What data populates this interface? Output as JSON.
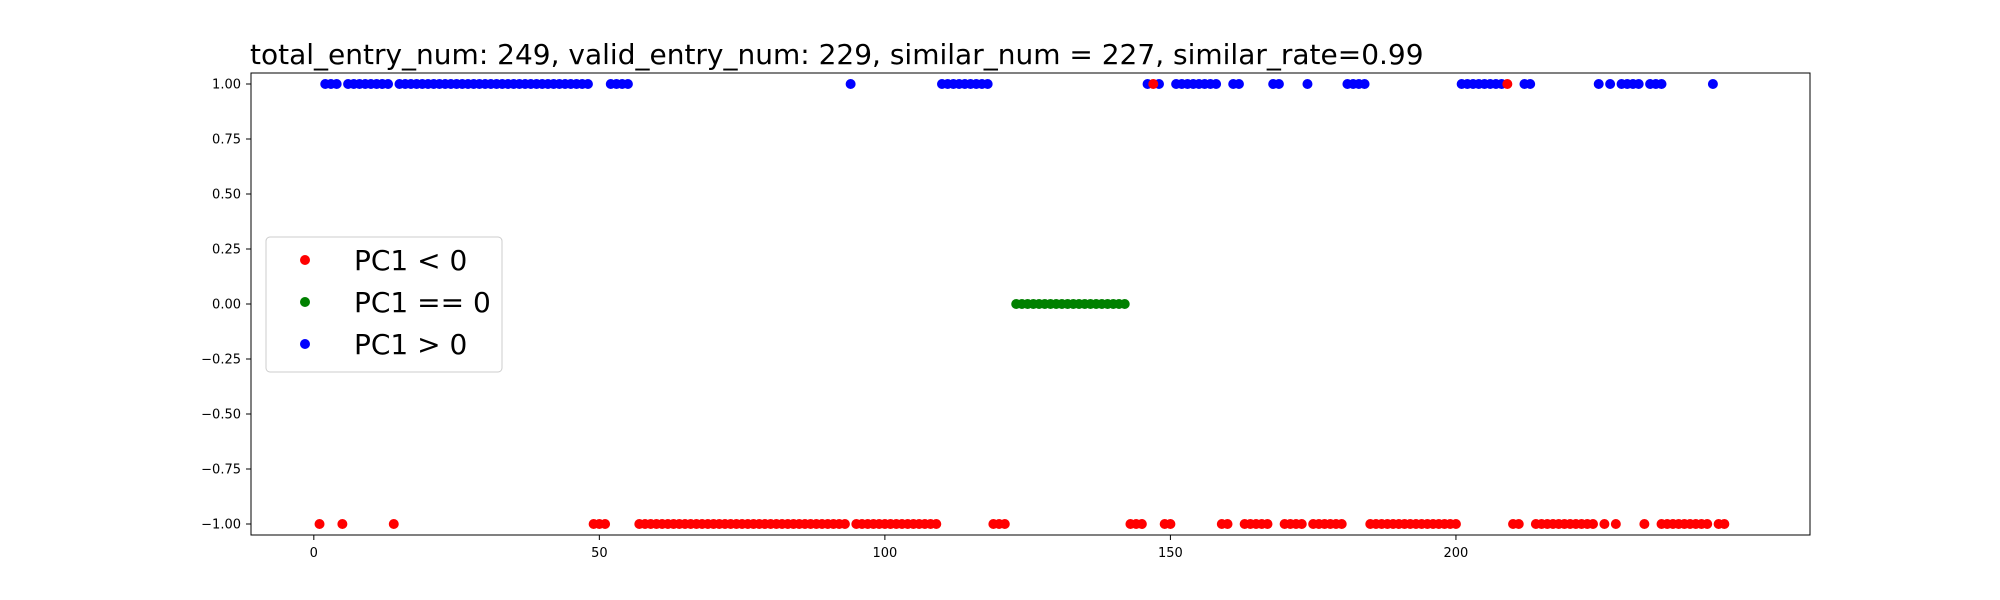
{
  "chart_data": {
    "type": "scatter",
    "title": "total_entry_num: 249, valid_entry_num: 229, similar_num = 227, similar_rate=0.99",
    "xlabel": "",
    "ylabel": "",
    "xlim": [
      -11,
      262
    ],
    "ylim": [
      -1.05,
      1.05
    ],
    "x_ticks": [
      0,
      50,
      100,
      150,
      200
    ],
    "x_tick_labels": [
      "0",
      "50",
      "100",
      "150",
      "200"
    ],
    "y_ticks": [
      1.0,
      0.75,
      0.5,
      0.25,
      0.0,
      -0.25,
      -0.5,
      -0.75,
      -1.0
    ],
    "y_tick_labels": [
      "1.00",
      "0.75",
      "0.50",
      "0.25",
      "0.00",
      "−0.25",
      "−0.50",
      "−0.75",
      "−1.00"
    ],
    "legend_location": "center-left",
    "series": [
      {
        "name": "PC1 < 0",
        "color": "#ff0000",
        "points": [
          [
            1,
            -1
          ],
          [
            5,
            -1
          ],
          [
            14,
            -1
          ],
          [
            49,
            -1
          ],
          [
            50,
            -1
          ],
          [
            51,
            -1
          ],
          [
            57,
            -1
          ],
          [
            58,
            -1
          ],
          [
            59,
            -1
          ],
          [
            60,
            -1
          ],
          [
            61,
            -1
          ],
          [
            62,
            -1
          ],
          [
            63,
            -1
          ],
          [
            64,
            -1
          ],
          [
            65,
            -1
          ],
          [
            66,
            -1
          ],
          [
            67,
            -1
          ],
          [
            68,
            -1
          ],
          [
            69,
            -1
          ],
          [
            70,
            -1
          ],
          [
            71,
            -1
          ],
          [
            72,
            -1
          ],
          [
            73,
            -1
          ],
          [
            74,
            -1
          ],
          [
            75,
            -1
          ],
          [
            76,
            -1
          ],
          [
            77,
            -1
          ],
          [
            78,
            -1
          ],
          [
            79,
            -1
          ],
          [
            80,
            -1
          ],
          [
            81,
            -1
          ],
          [
            82,
            -1
          ],
          [
            83,
            -1
          ],
          [
            84,
            -1
          ],
          [
            85,
            -1
          ],
          [
            86,
            -1
          ],
          [
            87,
            -1
          ],
          [
            88,
            -1
          ],
          [
            89,
            -1
          ],
          [
            90,
            -1
          ],
          [
            91,
            -1
          ],
          [
            92,
            -1
          ],
          [
            93,
            -1
          ],
          [
            95,
            -1
          ],
          [
            96,
            -1
          ],
          [
            97,
            -1
          ],
          [
            98,
            -1
          ],
          [
            99,
            -1
          ],
          [
            100,
            -1
          ],
          [
            101,
            -1
          ],
          [
            102,
            -1
          ],
          [
            103,
            -1
          ],
          [
            104,
            -1
          ],
          [
            105,
            -1
          ],
          [
            106,
            -1
          ],
          [
            107,
            -1
          ],
          [
            108,
            -1
          ],
          [
            109,
            -1
          ],
          [
            119,
            -1
          ],
          [
            120,
            -1
          ],
          [
            121,
            -1
          ],
          [
            143,
            -1
          ],
          [
            144,
            -1
          ],
          [
            145,
            -1
          ],
          [
            149,
            -1
          ],
          [
            150,
            -1
          ],
          [
            159,
            -1
          ],
          [
            160,
            -1
          ],
          [
            163,
            -1
          ],
          [
            164,
            -1
          ],
          [
            165,
            -1
          ],
          [
            166,
            -1
          ],
          [
            167,
            -1
          ],
          [
            170,
            -1
          ],
          [
            171,
            -1
          ],
          [
            172,
            -1
          ],
          [
            173,
            -1
          ],
          [
            175,
            -1
          ],
          [
            176,
            -1
          ],
          [
            177,
            -1
          ],
          [
            178,
            -1
          ],
          [
            179,
            -1
          ],
          [
            180,
            -1
          ],
          [
            185,
            -1
          ],
          [
            186,
            -1
          ],
          [
            187,
            -1
          ],
          [
            188,
            -1
          ],
          [
            189,
            -1
          ],
          [
            190,
            -1
          ],
          [
            191,
            -1
          ],
          [
            192,
            -1
          ],
          [
            193,
            -1
          ],
          [
            194,
            -1
          ],
          [
            195,
            -1
          ],
          [
            196,
            -1
          ],
          [
            197,
            -1
          ],
          [
            198,
            -1
          ],
          [
            199,
            -1
          ],
          [
            200,
            -1
          ],
          [
            210,
            -1
          ],
          [
            211,
            -1
          ],
          [
            214,
            -1
          ],
          [
            215,
            -1
          ],
          [
            216,
            -1
          ],
          [
            217,
            -1
          ],
          [
            218,
            -1
          ],
          [
            219,
            -1
          ],
          [
            220,
            -1
          ],
          [
            221,
            -1
          ],
          [
            222,
            -1
          ],
          [
            223,
            -1
          ],
          [
            224,
            -1
          ],
          [
            226,
            -1
          ],
          [
            228,
            -1
          ],
          [
            233,
            -1
          ],
          [
            236,
            -1
          ],
          [
            237,
            -1
          ],
          [
            238,
            -1
          ],
          [
            239,
            -1
          ],
          [
            240,
            -1
          ],
          [
            241,
            -1
          ],
          [
            242,
            -1
          ],
          [
            243,
            -1
          ],
          [
            244,
            -1
          ],
          [
            246,
            -1
          ],
          [
            247,
            -1
          ],
          [
            147,
            1
          ],
          [
            209,
            1
          ]
        ]
      },
      {
        "name": "PC1 == 0",
        "color": "#008000",
        "points": [
          [
            123,
            0
          ],
          [
            124,
            0
          ],
          [
            125,
            0
          ],
          [
            126,
            0
          ],
          [
            127,
            0
          ],
          [
            128,
            0
          ],
          [
            129,
            0
          ],
          [
            130,
            0
          ],
          [
            131,
            0
          ],
          [
            132,
            0
          ],
          [
            133,
            0
          ],
          [
            134,
            0
          ],
          [
            135,
            0
          ],
          [
            136,
            0
          ],
          [
            137,
            0
          ],
          [
            138,
            0
          ],
          [
            139,
            0
          ],
          [
            140,
            0
          ],
          [
            141,
            0
          ],
          [
            142,
            0
          ]
        ]
      },
      {
        "name": "PC1 > 0",
        "color": "#0000ff",
        "points": [
          [
            2,
            1
          ],
          [
            3,
            1
          ],
          [
            4,
            1
          ],
          [
            6,
            1
          ],
          [
            7,
            1
          ],
          [
            8,
            1
          ],
          [
            9,
            1
          ],
          [
            10,
            1
          ],
          [
            11,
            1
          ],
          [
            12,
            1
          ],
          [
            13,
            1
          ],
          [
            15,
            1
          ],
          [
            16,
            1
          ],
          [
            17,
            1
          ],
          [
            18,
            1
          ],
          [
            19,
            1
          ],
          [
            20,
            1
          ],
          [
            21,
            1
          ],
          [
            22,
            1
          ],
          [
            23,
            1
          ],
          [
            24,
            1
          ],
          [
            25,
            1
          ],
          [
            26,
            1
          ],
          [
            27,
            1
          ],
          [
            28,
            1
          ],
          [
            29,
            1
          ],
          [
            30,
            1
          ],
          [
            31,
            1
          ],
          [
            32,
            1
          ],
          [
            33,
            1
          ],
          [
            34,
            1
          ],
          [
            35,
            1
          ],
          [
            36,
            1
          ],
          [
            37,
            1
          ],
          [
            38,
            1
          ],
          [
            39,
            1
          ],
          [
            40,
            1
          ],
          [
            41,
            1
          ],
          [
            42,
            1
          ],
          [
            43,
            1
          ],
          [
            44,
            1
          ],
          [
            45,
            1
          ],
          [
            46,
            1
          ],
          [
            47,
            1
          ],
          [
            48,
            1
          ],
          [
            52,
            1
          ],
          [
            53,
            1
          ],
          [
            54,
            1
          ],
          [
            55,
            1
          ],
          [
            94,
            1
          ],
          [
            110,
            1
          ],
          [
            111,
            1
          ],
          [
            112,
            1
          ],
          [
            113,
            1
          ],
          [
            114,
            1
          ],
          [
            115,
            1
          ],
          [
            116,
            1
          ],
          [
            117,
            1
          ],
          [
            118,
            1
          ],
          [
            146,
            1
          ],
          [
            148,
            1
          ],
          [
            151,
            1
          ],
          [
            152,
            1
          ],
          [
            153,
            1
          ],
          [
            154,
            1
          ],
          [
            155,
            1
          ],
          [
            156,
            1
          ],
          [
            157,
            1
          ],
          [
            158,
            1
          ],
          [
            161,
            1
          ],
          [
            162,
            1
          ],
          [
            168,
            1
          ],
          [
            169,
            1
          ],
          [
            174,
            1
          ],
          [
            181,
            1
          ],
          [
            182,
            1
          ],
          [
            183,
            1
          ],
          [
            184,
            1
          ],
          [
            201,
            1
          ],
          [
            202,
            1
          ],
          [
            203,
            1
          ],
          [
            204,
            1
          ],
          [
            205,
            1
          ],
          [
            206,
            1
          ],
          [
            207,
            1
          ],
          [
            208,
            1
          ],
          [
            212,
            1
          ],
          [
            213,
            1
          ],
          [
            225,
            1
          ],
          [
            227,
            1
          ],
          [
            229,
            1
          ],
          [
            230,
            1
          ],
          [
            231,
            1
          ],
          [
            232,
            1
          ],
          [
            234,
            1
          ],
          [
            235,
            1
          ],
          [
            236,
            1
          ],
          [
            245,
            1
          ]
        ]
      }
    ]
  }
}
